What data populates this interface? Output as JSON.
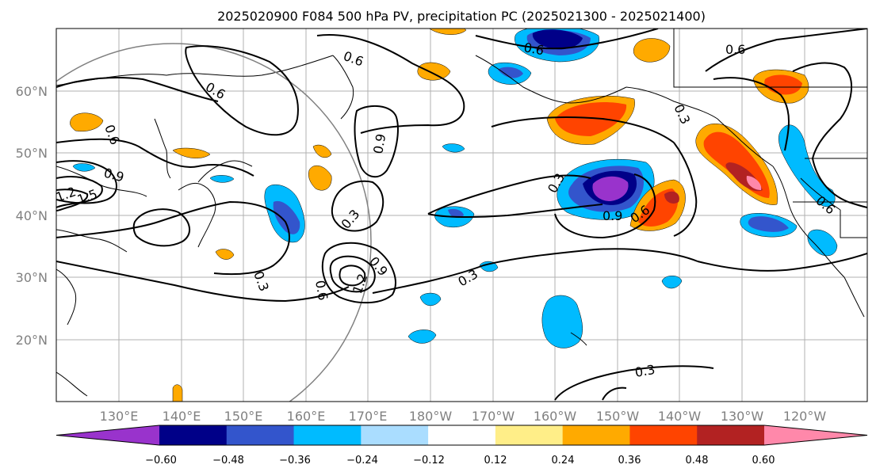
{
  "title": "2025020900 F084 500 hPa PV, precipitation PC (2025021300 - 2025021400)",
  "lat_labels": [
    "60°N",
    "50°N",
    "40°N",
    "30°N",
    "20°N"
  ],
  "lon_labels": [
    "130°E",
    "140°E",
    "150°E",
    "160°E",
    "170°E",
    "180°W",
    "170°W",
    "160°W",
    "150°W",
    "140°W",
    "130°W",
    "120°W"
  ],
  "colorbar": {
    "ticks": [
      "−0.60",
      "−0.48",
      "−0.36",
      "−0.24",
      "−0.12",
      "0.12",
      "0.24",
      "0.36",
      "0.48",
      "0.60"
    ],
    "colors": [
      "#9933cc",
      "#000088",
      "#3355cc",
      "#00bbff",
      "#aaddff",
      "#ffffff",
      "#ffee88",
      "#ffaa00",
      "#ff4400",
      "#b22222",
      "#ff88aa"
    ]
  },
  "contour_labels": [
    "0.6",
    "0.6",
    "0.6",
    "0.6",
    "0.6",
    "0.6",
    "0.6",
    "0.6",
    "0.9",
    "0.9",
    "0.9",
    "0.9",
    "1.2",
    "1.2",
    "1.5",
    "0.3",
    "0.3",
    "0.3",
    "0.3",
    "0.3",
    "0.3"
  ]
}
